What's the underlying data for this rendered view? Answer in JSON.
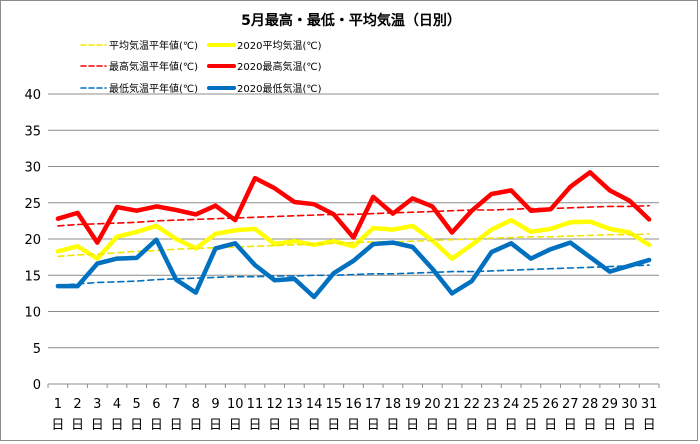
{
  "chart_data": {
    "type": "line",
    "title": "5月最高・最低・平均気温（日別）",
    "x": [
      "1",
      "2",
      "3",
      "4",
      "5",
      "6",
      "7",
      "8",
      "9",
      "10",
      "11",
      "12",
      "13",
      "14",
      "15",
      "16",
      "17",
      "18",
      "19",
      "20",
      "21",
      "22",
      "23",
      "24",
      "25",
      "26",
      "27",
      "28",
      "29",
      "30",
      "31"
    ],
    "x_suffix": "日",
    "ylim": [
      0,
      40
    ],
    "yticks": [
      0,
      5,
      10,
      15,
      20,
      25,
      30,
      35,
      40
    ],
    "grid": true,
    "legend_position": "top-left",
    "series": [
      {
        "name": "平均気温平年値(℃)",
        "style": "dashed",
        "color": "#f2e600",
        "values": [
          17.6,
          17.8,
          17.9,
          18.1,
          18.3,
          18.4,
          18.6,
          18.7,
          18.8,
          18.9,
          19.0,
          19.1,
          19.2,
          19.3,
          19.4,
          19.5,
          19.6,
          19.6,
          19.7,
          19.8,
          19.9,
          20.0,
          20.1,
          20.2,
          20.3,
          20.3,
          20.4,
          20.5,
          20.6,
          20.6,
          20.7
        ]
      },
      {
        "name": "2020平均気温(℃)",
        "style": "solid",
        "color": "#ffff00",
        "values": [
          18.3,
          19.0,
          17.3,
          20.3,
          21.0,
          21.8,
          20.0,
          18.7,
          20.7,
          21.2,
          21.4,
          19.3,
          19.7,
          19.2,
          19.7,
          19.0,
          21.5,
          21.3,
          21.8,
          19.8,
          17.3,
          19.2,
          21.3,
          22.6,
          21.0,
          21.4,
          22.3,
          22.4,
          21.4,
          20.9,
          19.2
        ]
      },
      {
        "name": "最高気温平年値(℃)",
        "style": "dashed",
        "color": "#ff0000",
        "values": [
          21.8,
          22.0,
          22.1,
          22.2,
          22.3,
          22.5,
          22.6,
          22.7,
          22.8,
          22.9,
          23.0,
          23.1,
          23.2,
          23.3,
          23.4,
          23.4,
          23.5,
          23.6,
          23.7,
          23.8,
          23.9,
          24.0,
          24.0,
          24.1,
          24.2,
          24.2,
          24.3,
          24.4,
          24.5,
          24.5,
          24.6
        ]
      },
      {
        "name": "2020最高気温(℃)",
        "style": "solid",
        "color": "#ff0000",
        "values": [
          22.8,
          23.6,
          19.5,
          24.4,
          23.9,
          24.5,
          24.0,
          23.4,
          24.6,
          22.6,
          28.4,
          27.0,
          25.1,
          24.8,
          23.4,
          20.2,
          25.8,
          23.5,
          25.6,
          24.5,
          20.9,
          23.9,
          26.2,
          26.7,
          23.9,
          24.1,
          27.2,
          29.2,
          26.7,
          25.3,
          22.7
        ]
      },
      {
        "name": "最低気温平年値(℃)",
        "style": "dashed",
        "color": "#0070c0",
        "values": [
          13.6,
          13.8,
          14.0,
          14.1,
          14.2,
          14.4,
          14.5,
          14.6,
          14.7,
          14.8,
          14.8,
          14.9,
          14.9,
          15.0,
          15.0,
          15.1,
          15.2,
          15.2,
          15.3,
          15.4,
          15.5,
          15.5,
          15.6,
          15.7,
          15.8,
          15.9,
          16.0,
          16.1,
          16.2,
          16.3,
          16.4
        ]
      },
      {
        "name": "2020最低気温(℃)",
        "style": "solid",
        "color": "#0070c0",
        "values": [
          13.5,
          13.5,
          16.6,
          17.3,
          17.4,
          19.9,
          14.4,
          12.6,
          18.7,
          19.4,
          16.4,
          14.3,
          14.5,
          12.0,
          15.3,
          17.0,
          19.3,
          19.5,
          18.9,
          15.9,
          12.5,
          14.2,
          18.2,
          19.4,
          17.3,
          18.6,
          19.5,
          17.5,
          15.5,
          16.3,
          17.1
        ]
      }
    ]
  }
}
